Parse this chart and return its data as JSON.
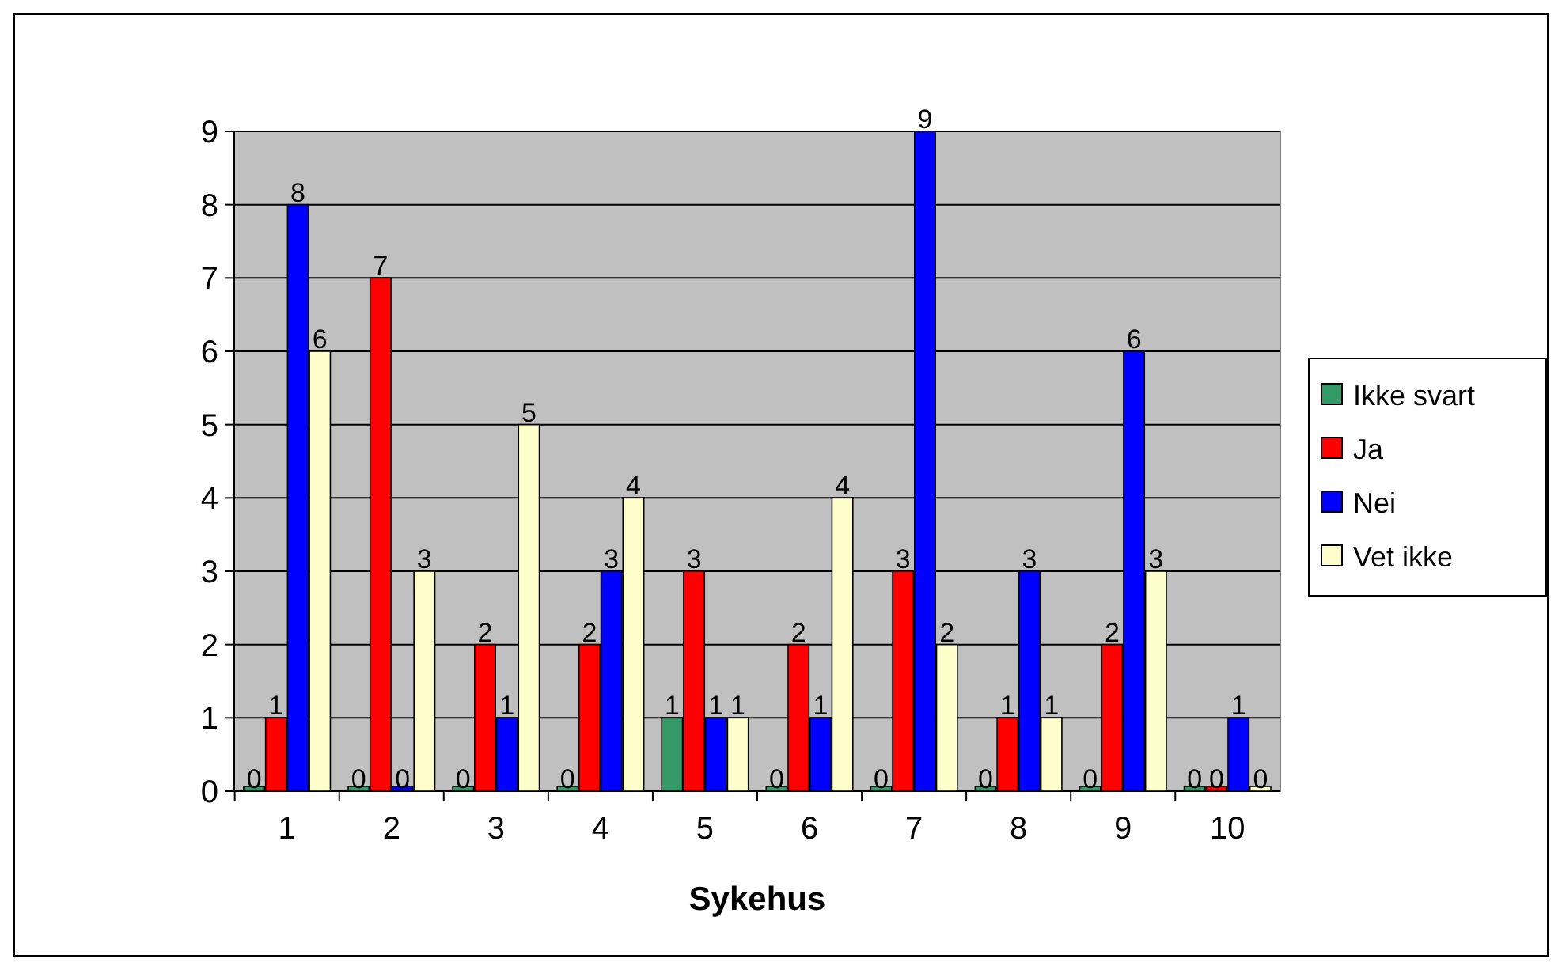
{
  "chart_data": {
    "type": "bar",
    "xlabel": "Sykehus",
    "categories": [
      "1",
      "2",
      "3",
      "4",
      "5",
      "6",
      "7",
      "8",
      "9",
      "10"
    ],
    "series": [
      {
        "name": "Ikke svart",
        "color": "#339966",
        "values": [
          0,
          0,
          0,
          0,
          1,
          0,
          0,
          0,
          0,
          0
        ]
      },
      {
        "name": "Ja",
        "color": "#ff0000",
        "values": [
          1,
          7,
          2,
          2,
          3,
          2,
          3,
          1,
          2,
          0
        ]
      },
      {
        "name": "Nei",
        "color": "#0000ff",
        "values": [
          8,
          0,
          1,
          3,
          1,
          1,
          9,
          3,
          6,
          1
        ]
      },
      {
        "name": "Vet ikke",
        "color": "#ffffcc",
        "values": [
          6,
          3,
          5,
          4,
          1,
          4,
          2,
          1,
          3,
          0
        ]
      }
    ],
    "ylim": [
      0,
      9
    ],
    "yticks": [
      0,
      1,
      2,
      3,
      4,
      5,
      6,
      7,
      8,
      9
    ],
    "grid": "y",
    "legend": "right",
    "data_labels": true
  }
}
